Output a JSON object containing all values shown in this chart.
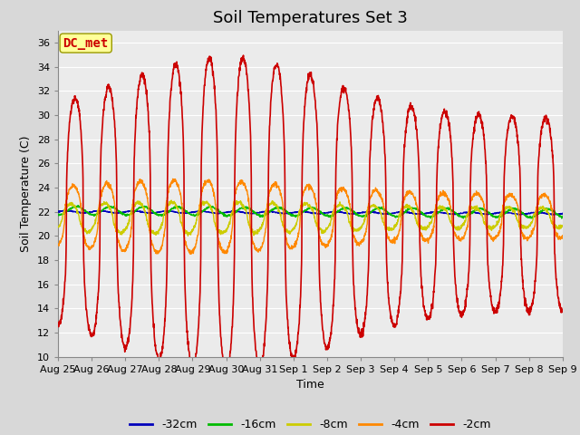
{
  "title": "Soil Temperatures Set 3",
  "xlabel": "Time",
  "ylabel": "Soil Temperature (C)",
  "ylim": [
    10,
    37
  ],
  "yticks": [
    10,
    12,
    14,
    16,
    18,
    20,
    22,
    24,
    26,
    28,
    30,
    32,
    34,
    36
  ],
  "series_labels": [
    "-32cm",
    "-16cm",
    "-8cm",
    "-4cm",
    "-2cm"
  ],
  "series_colors": [
    "#0000bb",
    "#00bb00",
    "#cccc00",
    "#ff8800",
    "#cc0000"
  ],
  "background_color": "#d8d8d8",
  "plot_bg_color": "#ebebeb",
  "grid_color": "#ffffff",
  "annotation_text": "DC_met",
  "annotation_color": "#cc0000",
  "annotation_bg": "#ffff99",
  "annotation_border": "#999900",
  "title_fontsize": 13,
  "axis_label_fontsize": 9,
  "tick_label_fontsize": 8,
  "legend_fontsize": 9,
  "num_days": 15,
  "points_per_day": 144,
  "base_temp": 21.8,
  "xtick_labels": [
    "Aug 25",
    "Aug 26",
    "Aug 27",
    "Aug 28",
    "Aug 29",
    "Aug 30",
    "Aug 31",
    "Sep 1",
    "Sep 2",
    "Sep 3",
    "Sep 4",
    "Sep 5",
    "Sep 6",
    "Sep 7",
    "Sep 8",
    "Sep 9"
  ]
}
